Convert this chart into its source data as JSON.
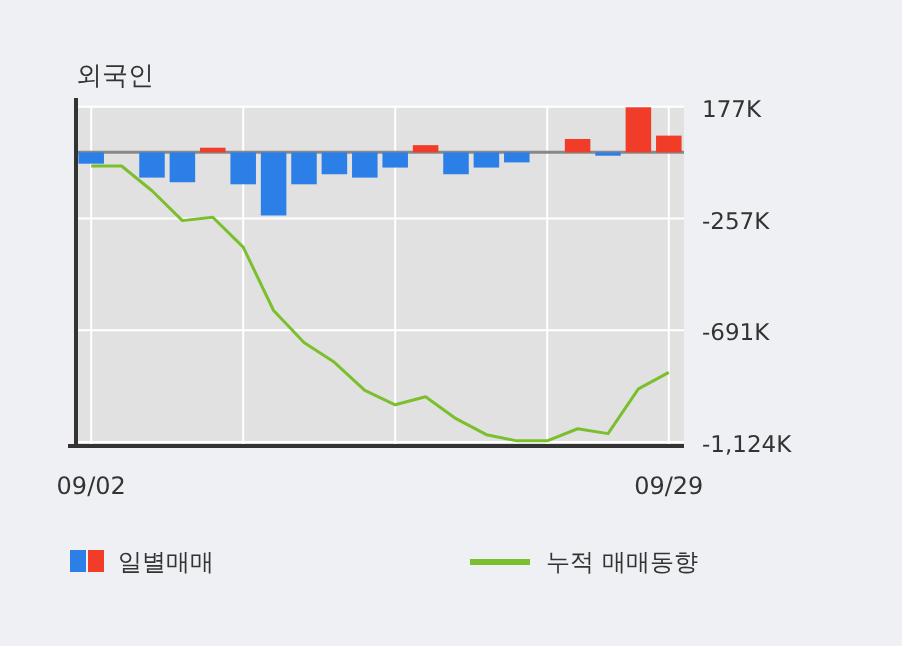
{
  "chart_data": {
    "type": "bar",
    "title": "외국인",
    "categories": [
      "09/02",
      null,
      null,
      null,
      null,
      null,
      null,
      null,
      null,
      null,
      null,
      null,
      null,
      null,
      null,
      null,
      null,
      null,
      null,
      "09/29"
    ],
    "series": [
      {
        "name": "일별매매",
        "colors": [
          "#2d7fe8",
          "#2d7fe8",
          "#2d7fe8",
          "#2d7fe8",
          "#f03c28",
          "#2d7fe8",
          "#2d7fe8",
          "#2d7fe8",
          "#2d7fe8",
          "#2d7fe8",
          "#2d7fe8",
          "#f03c28",
          "#2d7fe8",
          "#2d7fe8",
          "#2d7fe8",
          "#2d7fe8",
          "#f03c28",
          "#2d7fe8",
          "#f03c28",
          "#f03c28"
        ],
        "values": [
          -44,
          0,
          -98,
          -116,
          18,
          -124,
          -245,
          -124,
          -85,
          -98,
          -59,
          28,
          -85,
          -59,
          -39,
          0,
          52,
          -13,
          175,
          65
        ]
      },
      {
        "name": "누적 매매동향",
        "type": "line",
        "color": "#7cbf2e",
        "values": [
          -53,
          -53,
          -149,
          -265,
          -252,
          -368,
          -614,
          -738,
          -815,
          -924,
          -980,
          -949,
          -1034,
          -1096,
          -1120,
          -1120,
          -1073,
          -1092,
          -918,
          -854
        ]
      }
    ],
    "ylim": [
      -1140,
      180
    ],
    "yticks": [
      {
        "value": 177,
        "label": "177K"
      },
      {
        "value": -257,
        "label": "-257K"
      },
      {
        "value": -691,
        "label": "-691K"
      },
      {
        "value": -1124,
        "label": "-1,124K"
      }
    ],
    "grid": true,
    "legend": "bottom"
  }
}
